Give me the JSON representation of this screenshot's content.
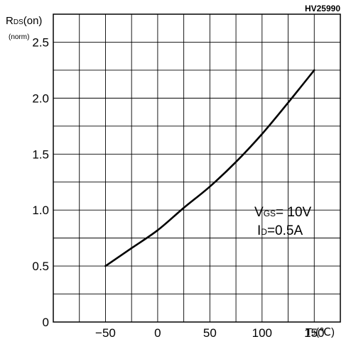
{
  "chart_data": {
    "type": "line",
    "figure_code": "HV25990",
    "y_label": {
      "main": "R",
      "sub": "DS",
      "tail": "(on)",
      "unit": "(norm)"
    },
    "x_label": {
      "main": "T",
      "sub": "J",
      "unit": "(℃)"
    },
    "x_ticks": [
      -50,
      0,
      50,
      100,
      150
    ],
    "y_ticks": [
      "0",
      "0.5",
      "1.0",
      "1.5",
      "2.0",
      "2.5"
    ],
    "xlim": [
      -100,
      175
    ],
    "ylim": [
      0,
      2.75
    ],
    "grid": true,
    "annotation": {
      "line1": {
        "main": "V",
        "sub": "GS",
        "tail": "= 10V"
      },
      "line2": {
        "main": "I",
        "sub": "D",
        "tail": "=0.5A"
      }
    },
    "series": [
      {
        "x": [
          -50,
          -25,
          0,
          25,
          50,
          75,
          100,
          125,
          150
        ],
        "y": [
          0.5,
          0.66,
          0.82,
          1.02,
          1.21,
          1.43,
          1.68,
          1.96,
          2.25
        ]
      }
    ]
  }
}
